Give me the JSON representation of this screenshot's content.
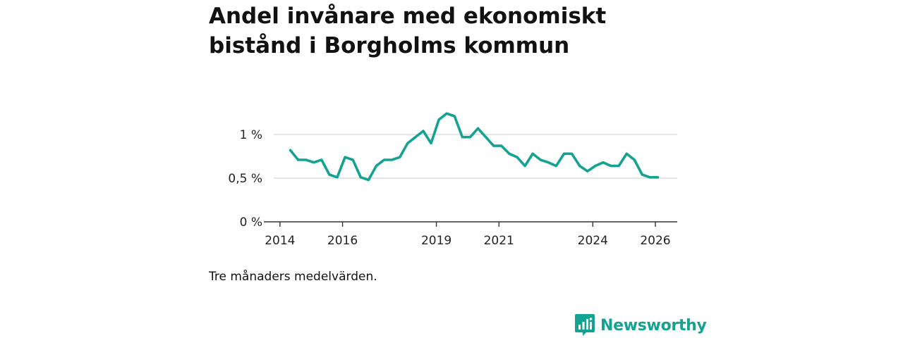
{
  "chart_data": {
    "type": "line",
    "title": "Andel invånare med ekonomiskt bistånd i Borgholms kommun",
    "caption": "Tre månaders medelvärden.",
    "xlabel": "",
    "ylabel": "",
    "xlim": [
      2013.8,
      2026.7
    ],
    "ylim": [
      0,
      1.25
    ],
    "y_ticks": [
      {
        "value": 0,
        "label": "0 %"
      },
      {
        "value": 0.5,
        "label": "0,5 %"
      },
      {
        "value": 1,
        "label": "1 %"
      }
    ],
    "x_ticks": [
      {
        "value": 2014,
        "label": "2014"
      },
      {
        "value": 2016,
        "label": "2016"
      },
      {
        "value": 2019,
        "label": "2019"
      },
      {
        "value": 2021,
        "label": "2021"
      },
      {
        "value": 2024,
        "label": "2024"
      },
      {
        "value": 2026,
        "label": "2026"
      }
    ],
    "grid": true,
    "series": [
      {
        "name": "Andel invånare med ekonomiskt bistånd",
        "color": "#14a393",
        "x": [
          2014.33,
          2014.58,
          2014.83,
          2015.08,
          2015.33,
          2015.58,
          2015.83,
          2016.08,
          2016.33,
          2016.58,
          2016.83,
          2017.08,
          2017.33,
          2017.58,
          2017.83,
          2018.08,
          2018.33,
          2018.58,
          2018.83,
          2019.08,
          2019.33,
          2019.58,
          2019.83,
          2020.08,
          2020.33,
          2020.58,
          2020.83,
          2021.08,
          2021.33,
          2021.58,
          2021.83,
          2022.08,
          2022.33,
          2022.58,
          2022.83,
          2023.08,
          2023.33,
          2023.58,
          2023.83,
          2024.08,
          2024.33,
          2024.58,
          2024.83,
          2025.08,
          2025.33,
          2025.58,
          2025.83,
          2026.08
        ],
        "values": [
          0.82,
          0.71,
          0.71,
          0.68,
          0.71,
          0.54,
          0.51,
          0.74,
          0.71,
          0.51,
          0.48,
          0.64,
          0.71,
          0.71,
          0.74,
          0.9,
          0.97,
          1.04,
          0.9,
          1.17,
          1.24,
          1.21,
          0.97,
          0.97,
          1.07,
          0.97,
          0.87,
          0.87,
          0.78,
          0.74,
          0.64,
          0.78,
          0.71,
          0.68,
          0.64,
          0.78,
          0.78,
          0.64,
          0.58,
          0.64,
          0.68,
          0.64,
          0.64,
          0.78,
          0.71,
          0.54,
          0.51,
          0.51
        ]
      }
    ]
  },
  "brand": {
    "name": "Newsworthy",
    "color": "#14a393",
    "icon": "newsworthy-logo-icon"
  }
}
